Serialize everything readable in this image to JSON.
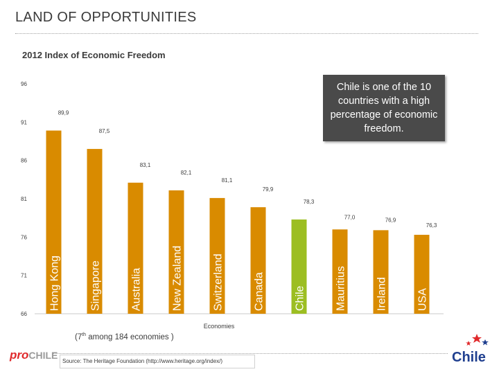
{
  "page": {
    "title": "LAND OF OPPORTUNITIES",
    "rank_prefix": "(7",
    "rank_sup": "th",
    "rank_suffix": " among 184 economies )",
    "source": "Source:  The Heritage Foundation (http://www.heritage.org/index/)",
    "callout": "Chile is one of the 10 countries with a high percentage of economic freedom.",
    "prochile_pro": "pro",
    "prochile_chile": "CHILE",
    "logo_text": "Chile"
  },
  "colors": {
    "bar": "#d98b00",
    "highlight": "#9cbe22",
    "axis": "#c8c8c8",
    "text": "#3b3b3b"
  },
  "chart_data": {
    "type": "bar",
    "title": "2012 Index of Economic Freedom",
    "xlabel": "Economies",
    "ylabel": "",
    "ylim": [
      66,
      96
    ],
    "yticks": [
      66,
      71,
      76,
      81,
      86,
      91,
      96
    ],
    "categories": [
      "Hong Kong",
      "Singapore",
      "Australia",
      "New Zealand",
      "Switzerland",
      "Canada",
      "Chile",
      "Mauritius",
      "Ireland",
      "USA"
    ],
    "values": [
      89.9,
      87.5,
      83.1,
      82.1,
      81.1,
      79.9,
      78.3,
      77.0,
      76.9,
      76.3
    ],
    "labels": [
      "89,9",
      "87,5",
      "83,1",
      "82,1",
      "81,1",
      "79,9",
      "78,3",
      "77,0",
      "76,9",
      "76,3"
    ],
    "highlight": "Chile",
    "grid": false,
    "legend": "none"
  }
}
